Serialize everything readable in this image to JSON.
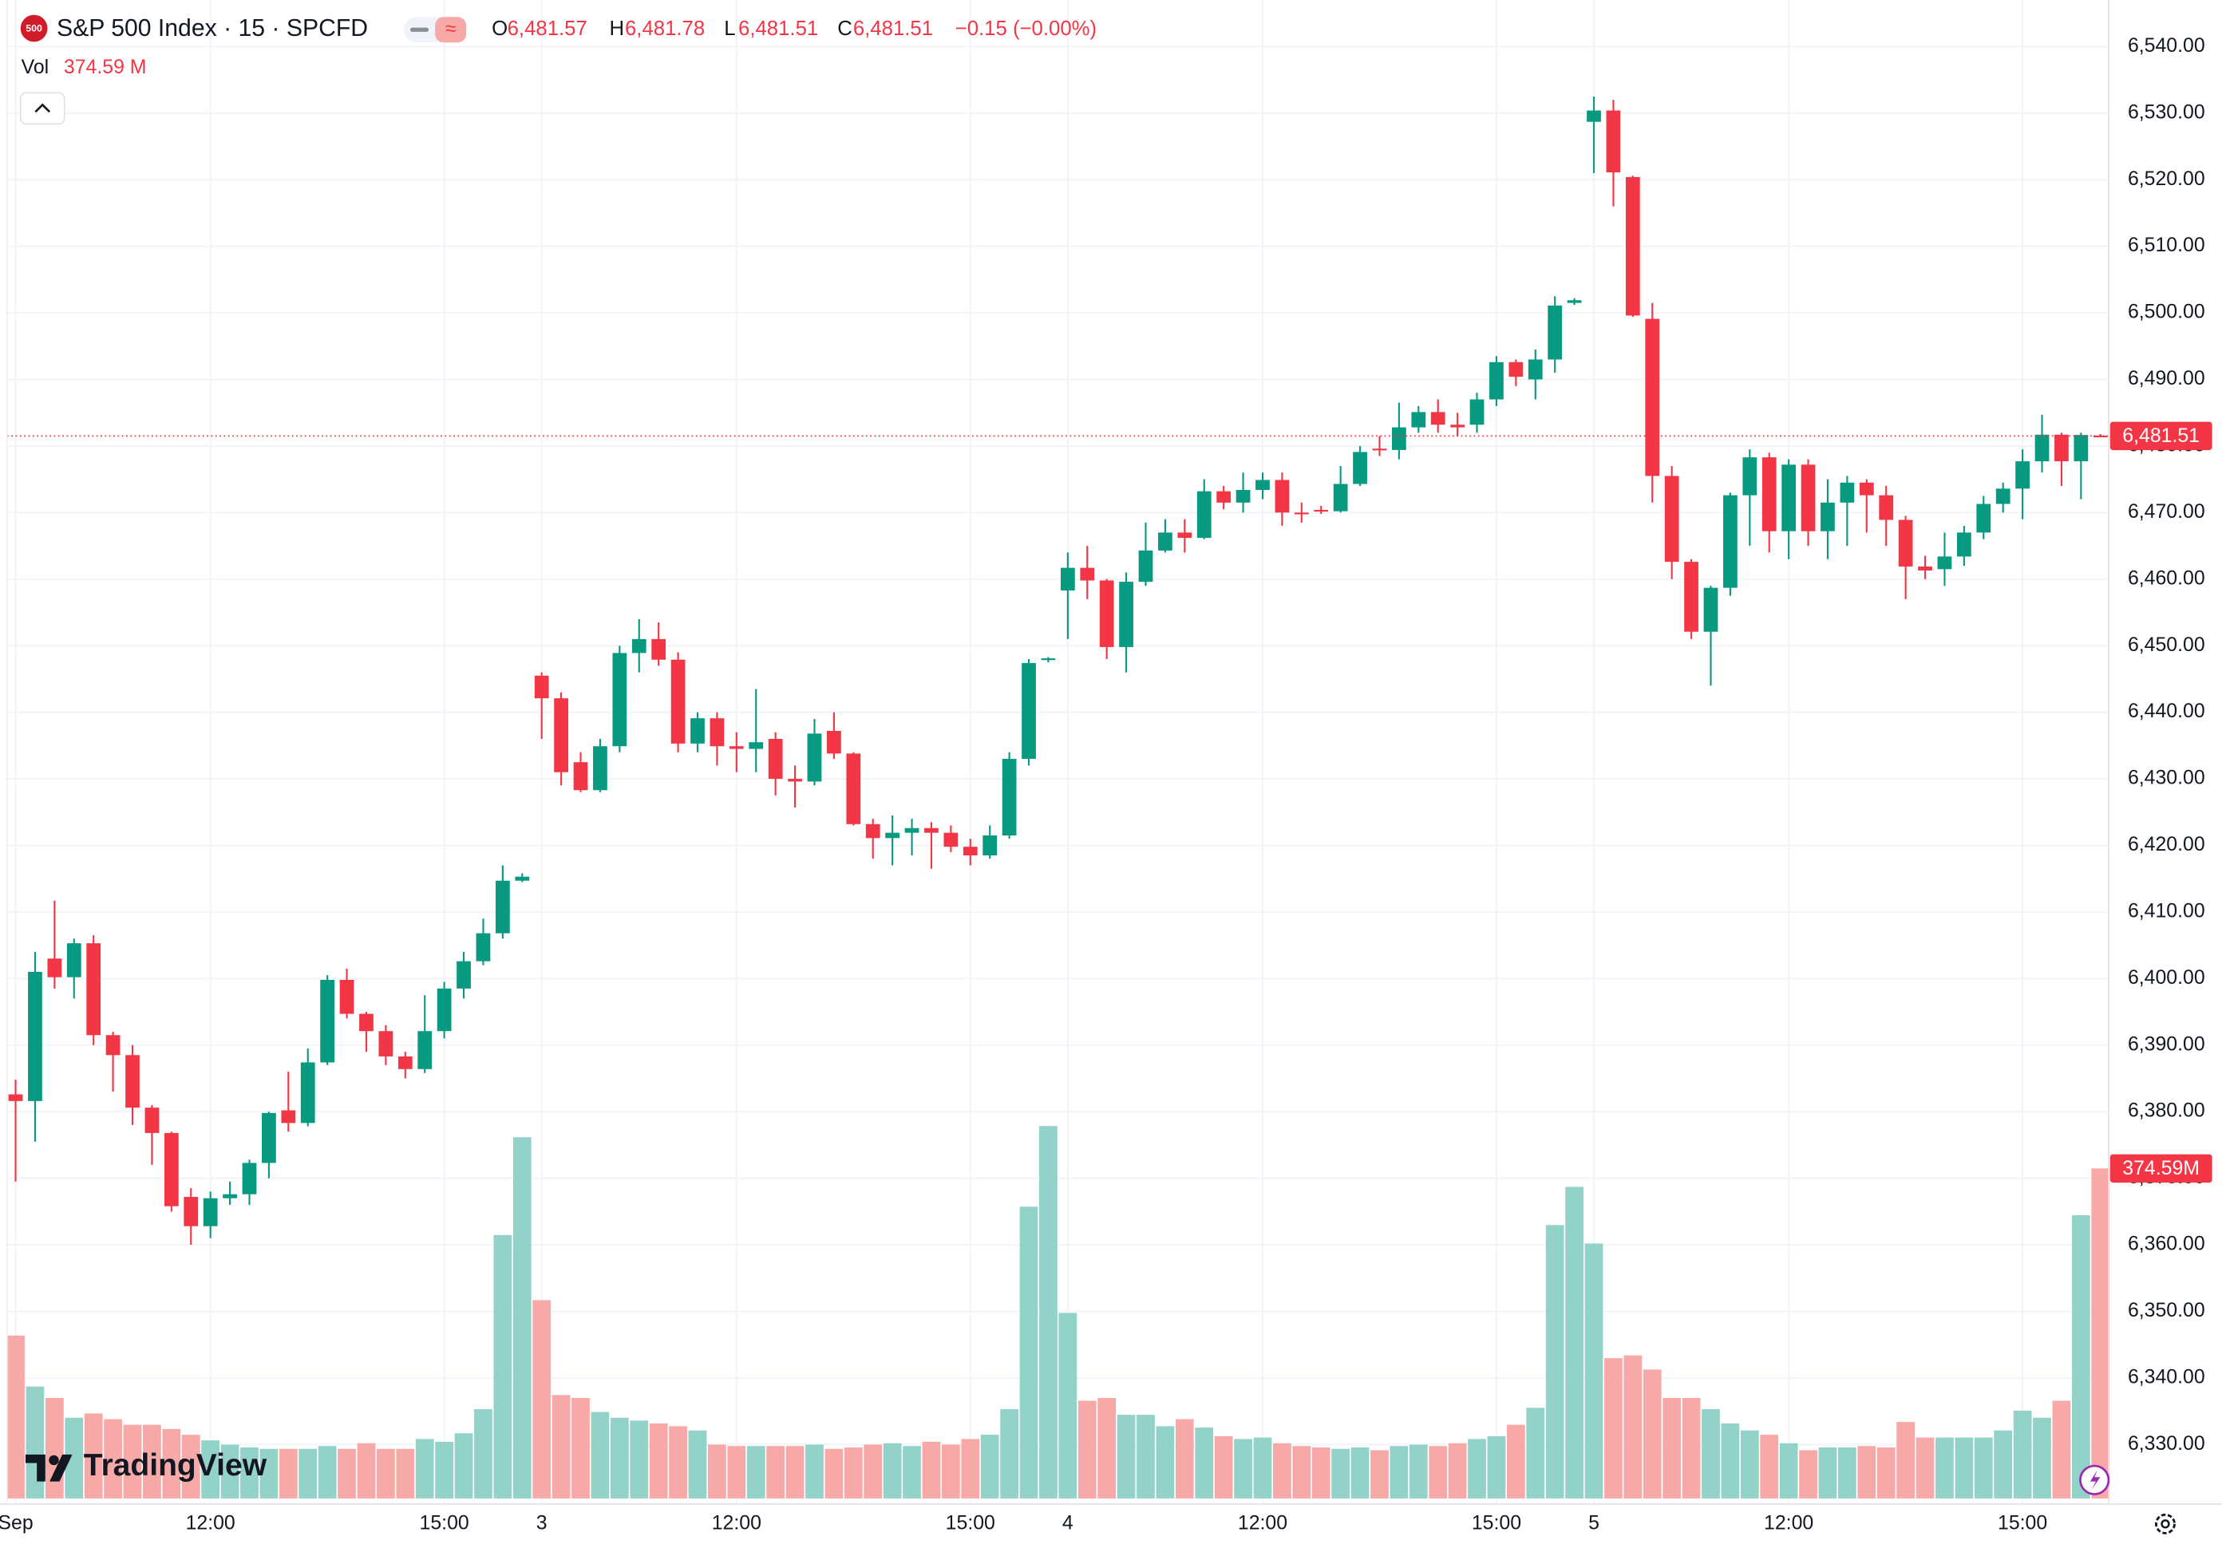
{
  "legend": {
    "symbol": "S&P 500 Index · 15 · SPCFD",
    "o": "O",
    "open": "6,481.57",
    "h": "H",
    "high": "6,481.78",
    "l": "L",
    "low": "6,481.51",
    "c": "C",
    "close": "6,481.51",
    "change": "−0.15 (−0.00%)",
    "vol": "Vol",
    "volume": "374.59 M"
  },
  "watermark": "TradingView",
  "chart_data": {
    "type": "candlestick",
    "up_color": "#089981",
    "down_color": "#f23645",
    "volume_up_color": "#92d2c8",
    "volume_down_color": "#f7a9a7",
    "grid": true,
    "categories": [
      "Sep",
      null,
      null,
      null,
      null,
      null,
      null,
      null,
      null,
      null,
      "12:00",
      null,
      null,
      null,
      null,
      null,
      null,
      null,
      null,
      null,
      null,
      null,
      "15:00",
      null,
      null,
      null,
      null,
      "3",
      null,
      null,
      null,
      null,
      null,
      null,
      null,
      null,
      null,
      "12:00",
      null,
      null,
      null,
      null,
      null,
      null,
      null,
      null,
      null,
      null,
      null,
      "15:00",
      null,
      null,
      null,
      null,
      "4",
      null,
      null,
      null,
      null,
      null,
      null,
      null,
      null,
      null,
      "12:00",
      null,
      null,
      null,
      null,
      null,
      null,
      null,
      null,
      null,
      null,
      null,
      "15:00",
      null,
      null,
      null,
      null,
      "5",
      null,
      null,
      null,
      null,
      null,
      null,
      null,
      null,
      null,
      "12:00",
      null,
      null,
      null,
      null,
      null,
      null,
      null,
      null,
      null,
      null,
      null,
      "15:00",
      null,
      null,
      null,
      null
    ],
    "open": [
      6382.6,
      6381.6,
      6403,
      6400.2,
      6405.3,
      6391.5,
      6388.5,
      6380.6,
      6376.8,
      6367.2,
      6362.8,
      6367,
      6367.6,
      6372.3,
      6380.2,
      6378.3,
      6387.4,
      6399.8,
      6394.7,
      6392.1,
      6388.3,
      6386.4,
      6392.1,
      6398.5,
      6402.6,
      6406.8,
      6414.7,
      6445.5,
      6442.1,
      6432.5,
      6428.3,
      6434.9,
      6448.9,
      6451,
      6447.9,
      6435.3,
      6439.1,
      6434.9,
      6434.5,
      6436,
      6430,
      6429.6,
      6437.2,
      6433.8,
      6423.2,
      6421.1,
      6421.9,
      6422.6,
      6421.9,
      6419.8,
      6418.5,
      6421.5,
      6433,
      6447.9,
      6458.3,
      6461.7,
      6459.8,
      6449.8,
      6459.6,
      6464.3,
      6467,
      6466.2,
      6473.2,
      6471.5,
      6473.4,
      6474.9,
      6470,
      6470.4,
      6470.2,
      6474.3,
      6479.6,
      6479.4,
      6482.8,
      6485.1,
      6483.2,
      6483.2,
      6487,
      6492.6,
      6490,
      6493,
      6501.5,
      6528.7,
      6530.4,
      6520.4,
      6499.1,
      6475.5,
      6462.6,
      6452.1,
      6458.7,
      6472.6,
      6478.3,
      6467.2,
      6477.2,
      6467.2,
      6471.5,
      6474.5,
      6472.6,
      6468.9,
      6461.9,
      6461.5,
      6463.4,
      6467,
      6471.3,
      6473.6,
      6477.7,
      6481.7,
      6477.7,
      6481.57
    ],
    "high": [
      6384.8,
      6404,
      6411.7,
      6406,
      6406.5,
      6392,
      6390,
      6381,
      6377,
      6368.5,
      6368,
      6369.5,
      6372.8,
      6380,
      6386,
      6389.5,
      6400.5,
      6401.5,
      6395,
      6393,
      6389,
      6397.5,
      6399.5,
      6404,
      6409,
      6417,
      6415.8,
      6446,
      6443,
      6434,
      6436,
      6450,
      6454,
      6453.5,
      6449,
      6440,
      6440,
      6437,
      6443.5,
      6437,
      6432,
      6439,
      6440,
      6434,
      6424,
      6424.5,
      6424,
      6423.5,
      6423,
      6421,
      6423,
      6434,
      6448,
      6448.3,
      6464,
      6465,
      6460,
      6461,
      6468.5,
      6469,
      6469,
      6475,
      6474,
      6476,
      6476,
      6476,
      6471.5,
      6471,
      6477,
      6480,
      6481.5,
      6486.5,
      6486,
      6487,
      6485,
      6488,
      6493.5,
      6493,
      6494.5,
      6502.5,
      6502.2,
      6532.5,
      6532,
      6520.6,
      6501.5,
      6477,
      6463,
      6459,
      6473,
      6479.5,
      6479,
      6478,
      6478,
      6475,
      6475.5,
      6475,
      6474,
      6469.5,
      6463.5,
      6467,
      6468,
      6472.5,
      6474.5,
      6479.5,
      6484.7,
      6482,
      6482,
      6481.78
    ],
    "low": [
      6369.5,
      6375.5,
      6398.5,
      6397,
      6390,
      6383,
      6378,
      6372,
      6365,
      6360,
      6361,
      6366,
      6366,
      6370,
      6377,
      6377.8,
      6387,
      6394,
      6389,
      6387,
      6385,
      6385.8,
      6391,
      6397,
      6402,
      6406,
      6414.5,
      6436,
      6429,
      6428,
      6428,
      6434,
      6446,
      6447,
      6434,
      6434,
      6432,
      6431,
      6431,
      6427.5,
      6425.7,
      6429,
      6433,
      6423,
      6418,
      6417,
      6418.5,
      6416.5,
      6419,
      6417,
      6418,
      6421,
      6432,
      6447.5,
      6451,
      6457,
      6448,
      6446,
      6459,
      6464,
      6464,
      6466,
      6470.5,
      6470,
      6472,
      6468,
      6468.5,
      6469.8,
      6470,
      6474,
      6478.5,
      6478,
      6482,
      6482,
      6481.5,
      6482,
      6486,
      6489,
      6487,
      6491,
      6501.2,
      6521,
      6516,
      6499.4,
      6471.5,
      6460,
      6451,
      6444,
      6457.5,
      6465,
      6464,
      6463,
      6465,
      6463,
      6465,
      6467,
      6465,
      6457,
      6460,
      6459,
      6462,
      6466,
      6470,
      6469,
      6476,
      6474,
      6472,
      6481.51
    ],
    "close": [
      6381.6,
      6401,
      6400.2,
      6405.3,
      6391.5,
      6388.5,
      6380.6,
      6376.8,
      6365.8,
      6362.8,
      6367,
      6367.6,
      6372.3,
      6379.8,
      6378.3,
      6387.4,
      6399.8,
      6394.7,
      6392.1,
      6388.3,
      6386.4,
      6392.1,
      6398.5,
      6402.6,
      6406.8,
      6414.7,
      6415.3,
      6442.1,
      6431,
      6428.3,
      6434.9,
      6448.9,
      6451,
      6447.9,
      6435.3,
      6439.1,
      6434.9,
      6434.5,
      6435.5,
      6430,
      6429.6,
      6436.8,
      6433.8,
      6423.2,
      6421.1,
      6421.9,
      6422.6,
      6421.9,
      6419.8,
      6418.5,
      6421.5,
      6433,
      6447.4,
      6448.1,
      6461.7,
      6459.8,
      6449.8,
      6459.6,
      6464.3,
      6467,
      6466.2,
      6473.2,
      6471.5,
      6473.4,
      6474.9,
      6470,
      6469.8,
      6470.2,
      6474.3,
      6479.1,
      6479.4,
      6482.8,
      6485.1,
      6483.2,
      6482.8,
      6487,
      6492.6,
      6490.4,
      6493,
      6501.1,
      6501.9,
      6530.4,
      6521.1,
      6499.6,
      6475.5,
      6462.6,
      6452.1,
      6458.7,
      6472.6,
      6478.3,
      6467.2,
      6477.2,
      6467.2,
      6471.5,
      6474.5,
      6472.6,
      6468.9,
      6461.9,
      6461.3,
      6463.4,
      6467,
      6471.3,
      6473.6,
      6477.7,
      6481.7,
      6477.7,
      6481.66,
      6481.51
    ],
    "volume": [
      184.9,
      127.0,
      114.1,
      91.6,
      96.5,
      90.0,
      83.6,
      83.6,
      78.8,
      72.3,
      65.9,
      61.1,
      57.9,
      56.3,
      56.3,
      56.3,
      59.5,
      56.3,
      62.7,
      56.3,
      56.3,
      67.5,
      64.3,
      74.0,
      101.3,
      299.0,
      410.0,
      225.1,
      117.4,
      114.1,
      98.1,
      91.6,
      88.4,
      85.2,
      82.0,
      77.2,
      61.1,
      59.5,
      59.5,
      59.5,
      59.5,
      61.1,
      56.3,
      57.9,
      61.1,
      62.7,
      59.5,
      64.3,
      61.1,
      67.5,
      72.3,
      101.3,
      331.2,
      422.8,
      210.6,
      110.9,
      114.1,
      94.9,
      94.9,
      82.0,
      90.0,
      80.4,
      70.7,
      67.5,
      69.1,
      62.7,
      59.5,
      57.9,
      56.3,
      57.9,
      54.7,
      59.5,
      61.1,
      59.5,
      62.7,
      67.5,
      70.7,
      83.6,
      102.9,
      310.3,
      353.7,
      289.4,
      159.2,
      162.4,
      146.3,
      114.1,
      114.1,
      101.3,
      85.2,
      77.2,
      72.3,
      62.7,
      54.7,
      57.9,
      57.9,
      59.5,
      57.9,
      86.8,
      69.1,
      69.1,
      69.1,
      69.1,
      77.2,
      99.7,
      91.6,
      110.9,
      321.5,
      374.59
    ],
    "ylim": [
      6321.9,
      6547.0
    ],
    "volume_ylim": [
      0,
      1701
    ],
    "yticks": [
      {
        "value": 6330,
        "label": "6,330.00"
      },
      {
        "value": 6340,
        "label": "6,340.00"
      },
      {
        "value": 6350,
        "label": "6,350.00"
      },
      {
        "value": 6360,
        "label": "6,360.00"
      },
      {
        "value": 6370,
        "label": "6,370.00"
      },
      {
        "value": 6380,
        "label": "6,380.00"
      },
      {
        "value": 6390,
        "label": "6,390.00"
      },
      {
        "value": 6400,
        "label": "6,400.00"
      },
      {
        "value": 6410,
        "label": "6,410.00"
      },
      {
        "value": 6420,
        "label": "6,420.00"
      },
      {
        "value": 6430,
        "label": "6,430.00"
      },
      {
        "value": 6440,
        "label": "6,440.00"
      },
      {
        "value": 6450,
        "label": "6,450.00"
      },
      {
        "value": 6460,
        "label": "6,460.00"
      },
      {
        "value": 6470,
        "label": "6,470.00"
      },
      {
        "value": 6480,
        "label": "6,480.00"
      },
      {
        "value": 6490,
        "label": "6,490.00"
      },
      {
        "value": 6500,
        "label": "6,500.00"
      },
      {
        "value": 6510,
        "label": "6,510.00"
      },
      {
        "value": 6520,
        "label": "6,520.00"
      },
      {
        "value": 6530,
        "label": "6,530.00"
      },
      {
        "value": 6540,
        "label": "6,540.00"
      }
    ],
    "price_label": {
      "value": 6481.51,
      "label": "6,481.51"
    },
    "volume_label": {
      "value": 374.59,
      "label": "374.59M"
    }
  }
}
